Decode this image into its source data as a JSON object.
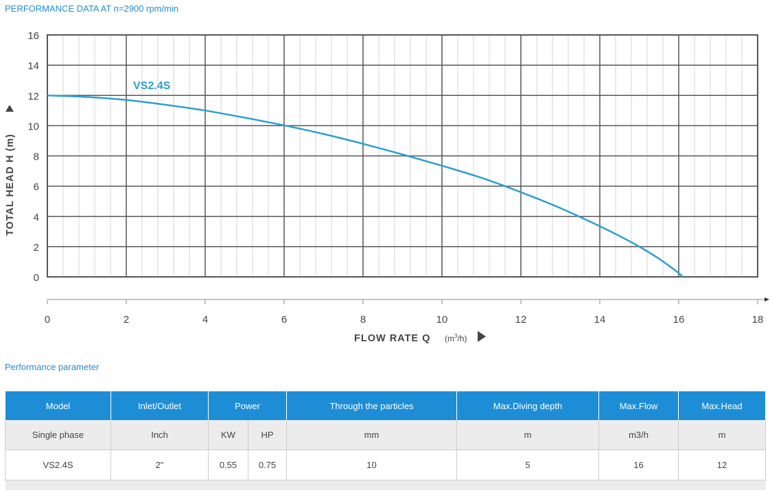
{
  "header": {
    "title": "PERFORMANCE DATA AT n=2900 rpm/min"
  },
  "chart_data": {
    "type": "line",
    "title": "PERFORMANCE DATA AT n=2900 rpm/min",
    "xlabel": "FLOW RATE Q",
    "xunit_prefix": "(m",
    "xunit_sup": "3",
    "xunit_suffix": "/h)",
    "ylabel": "TOTAL HEAD H (m)",
    "xlim": [
      0,
      18
    ],
    "ylim": [
      0,
      16
    ],
    "xticks": [
      "0",
      "2",
      "4",
      "6",
      "8",
      "10",
      "12",
      "14",
      "16",
      "18"
    ],
    "yticks": [
      "0",
      "2",
      "4",
      "6",
      "8",
      "10",
      "12",
      "14",
      "16"
    ],
    "grid": true,
    "series": [
      {
        "name": "VS2.4S",
        "color": "#2a9fd0",
        "x": [
          0,
          1,
          2,
          3,
          4,
          5,
          6,
          7,
          8,
          9,
          10,
          11,
          12,
          13,
          14,
          14.5,
          15,
          15.5,
          16,
          16.1
        ],
        "y": [
          12,
          11.9,
          11.7,
          11.38,
          11.0,
          10.53,
          10.02,
          9.45,
          8.8,
          8.1,
          7.35,
          6.55,
          5.6,
          4.55,
          3.35,
          2.7,
          2.0,
          1.2,
          0.25,
          0
        ]
      }
    ]
  },
  "params": {
    "title": "Performance parameter",
    "headers": [
      "Model",
      "Inlet/Outlet",
      "Power",
      "Through the particles",
      "Max.Diving depth",
      "Max.Flow",
      "Max.Head"
    ],
    "units": [
      "Single phase",
      "Inch",
      "KW",
      "HP",
      "mm",
      "m",
      "m3/h",
      "m"
    ],
    "rows": [
      [
        "VS2.4S",
        "2\"",
        "0.55",
        "0.75",
        "10",
        "5",
        "16",
        "12"
      ]
    ]
  }
}
